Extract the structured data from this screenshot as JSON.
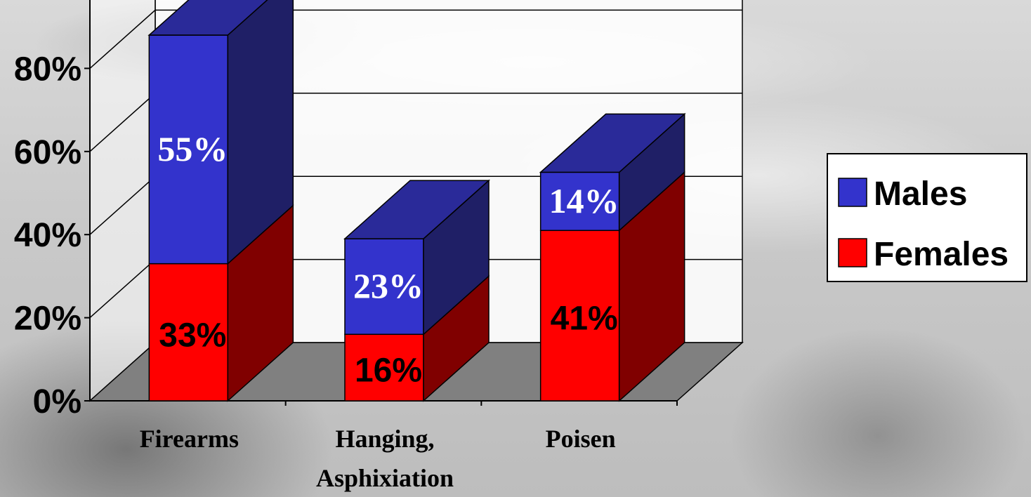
{
  "chart_data": {
    "type": "bar",
    "stacked": true,
    "categories": [
      "Firearms",
      "Hanging, Asphixiation",
      "Poisen"
    ],
    "series": [
      {
        "name": "Females",
        "values": [
          33,
          16,
          41
        ],
        "labels": [
          "33%",
          "16%",
          "41%"
        ],
        "color": "#ff0000"
      },
      {
        "name": "Males",
        "values": [
          55,
          23,
          14
        ],
        "labels": [
          "55%",
          "23%",
          "14%"
        ],
        "color": "#3333cc"
      }
    ],
    "yticks": [
      "0%",
      "20%",
      "40%",
      "60%",
      "80%"
    ],
    "ytick_values": [
      0,
      20,
      40,
      60,
      80
    ],
    "ylim": [
      0,
      100
    ],
    "grid": true,
    "legend": "right",
    "style": "3d"
  },
  "colors": {
    "females_side": "#800000",
    "males_side": "#1f1f66",
    "floor": "#808080",
    "wall": "#ffffff"
  }
}
